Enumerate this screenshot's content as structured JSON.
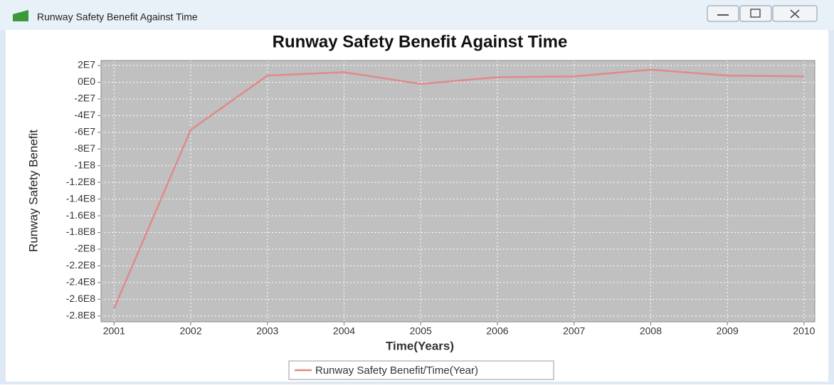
{
  "window": {
    "title": "Runway Safety Benefit Against Time"
  },
  "chart_data": {
    "type": "line",
    "title": "Runway Safety Benefit Against Time",
    "x_label": "Time(Years)",
    "y_label": "Runway Safety Benefit",
    "x": [
      2001,
      2002,
      2003,
      2004,
      2005,
      2006,
      2007,
      2008,
      2009,
      2010
    ],
    "series": [
      {
        "name": "Runway Safety Benefit/Time(Year)",
        "color": "#e08a8a",
        "values": [
          -271000000,
          -57000000,
          8000000,
          12000000,
          -2000000,
          6000000,
          7000000,
          15000000,
          8000000,
          7000000
        ]
      }
    ],
    "xlim": [
      2000.83,
      2010.14
    ],
    "xticks": [
      2001,
      2002,
      2003,
      2004,
      2005,
      2006,
      2007,
      2008,
      2009,
      2010
    ],
    "ylim": [
      -287000000,
      26000000
    ],
    "yticks": [
      {
        "value": 20000000,
        "label": "2E7"
      },
      {
        "value": 0,
        "label": "0E0"
      },
      {
        "value": -20000000,
        "label": "-2E7"
      },
      {
        "value": -40000000,
        "label": "-4E7"
      },
      {
        "value": -60000000,
        "label": "-6E7"
      },
      {
        "value": -80000000,
        "label": "-8E7"
      },
      {
        "value": -100000000,
        "label": "-1E8"
      },
      {
        "value": -120000000,
        "label": "-1.2E8"
      },
      {
        "value": -140000000,
        "label": "-1.4E8"
      },
      {
        "value": -160000000,
        "label": "-1.6E8"
      },
      {
        "value": -180000000,
        "label": "-1.8E8"
      },
      {
        "value": -200000000,
        "label": "-2E8"
      },
      {
        "value": -220000000,
        "label": "-2.2E8"
      },
      {
        "value": -240000000,
        "label": "-2.4E8"
      },
      {
        "value": -260000000,
        "label": "-2.6E8"
      },
      {
        "value": -280000000,
        "label": "-2.8E8"
      }
    ],
    "grid": true,
    "legend": "bottom"
  }
}
